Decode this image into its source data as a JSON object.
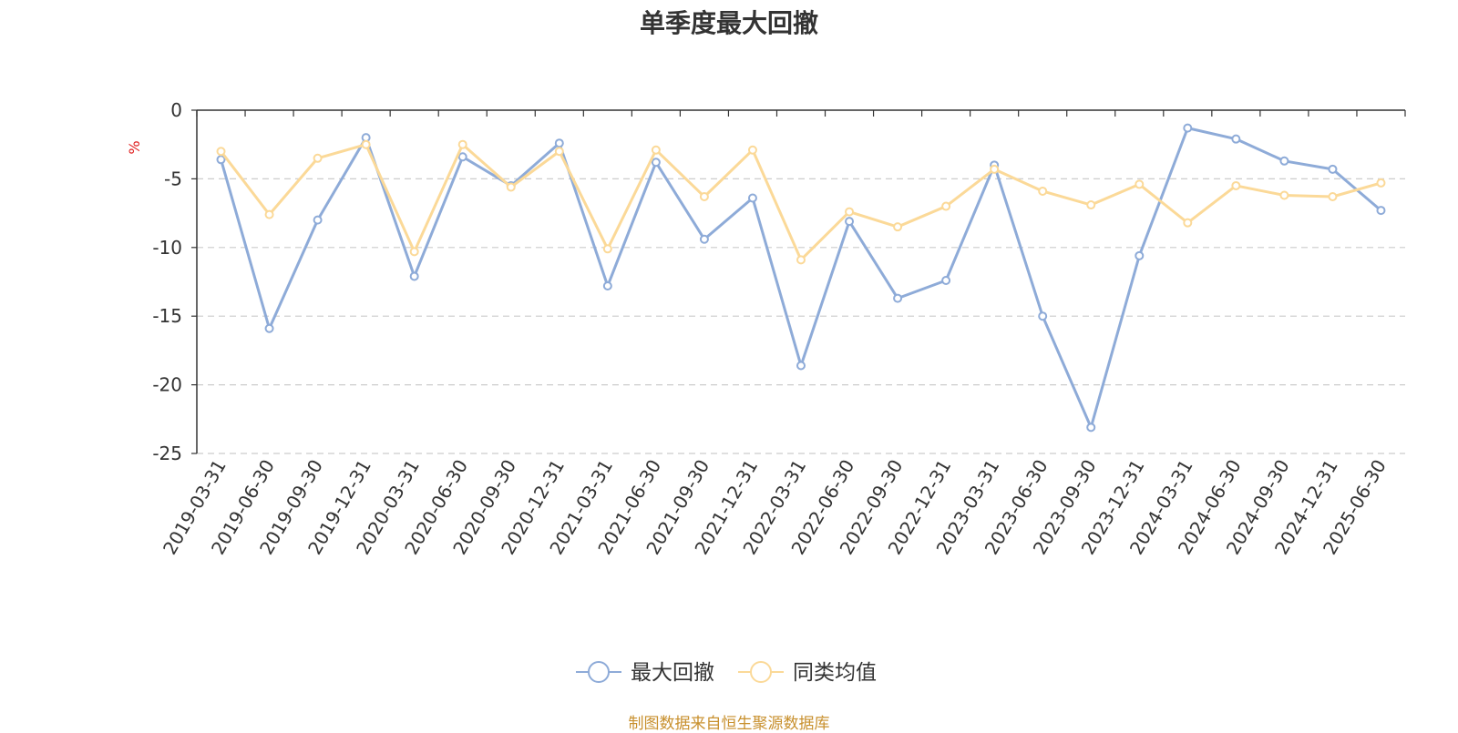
{
  "chart_data": {
    "type": "line",
    "title": "单季度最大回撤",
    "ylabel": "%",
    "ylim": [
      -25,
      0
    ],
    "yticks": [
      0,
      -5,
      -10,
      -15,
      -20,
      -25
    ],
    "grid": true,
    "legend_position": "bottom",
    "categories": [
      "2019-03-31",
      "2019-06-30",
      "2019-09-30",
      "2019-12-31",
      "2020-03-31",
      "2020-06-30",
      "2020-09-30",
      "2020-12-31",
      "2021-03-31",
      "2021-06-30",
      "2021-09-30",
      "2021-12-31",
      "2022-03-31",
      "2022-06-30",
      "2022-09-30",
      "2022-12-31",
      "2023-03-31",
      "2023-06-30",
      "2023-09-30",
      "2023-12-31",
      "2024-03-31",
      "2024-06-30",
      "2024-09-30",
      "2024-12-31",
      "2025-06-30"
    ],
    "series": [
      {
        "name": "最大回撤",
        "color": "#8eabd8",
        "values": [
          -3.6,
          -15.9,
          -8.0,
          -2.0,
          -12.1,
          -3.4,
          -5.5,
          -2.4,
          -12.8,
          -3.8,
          -9.4,
          -6.4,
          -18.6,
          -8.1,
          -13.7,
          -12.4,
          -4.0,
          -15.0,
          -23.1,
          -10.6,
          -1.3,
          -2.1,
          -3.7,
          -4.3,
          -7.3
        ]
      },
      {
        "name": "同类均值",
        "color": "#fbd998",
        "values": [
          -3.0,
          -7.6,
          -3.5,
          -2.5,
          -10.3,
          -2.5,
          -5.6,
          -3.0,
          -10.1,
          -2.9,
          -6.3,
          -2.9,
          -10.9,
          -7.4,
          -8.5,
          -7.0,
          -4.3,
          -5.9,
          -6.9,
          -5.4,
          -8.2,
          -5.5,
          -6.2,
          -6.3,
          -5.3
        ]
      }
    ]
  },
  "footer": {
    "source": "制图数据来自恒生聚源数据库"
  },
  "colors": {
    "axis": "#333333",
    "grid": "#cccccc",
    "unit": "#e02020",
    "source": "#c8902e"
  }
}
